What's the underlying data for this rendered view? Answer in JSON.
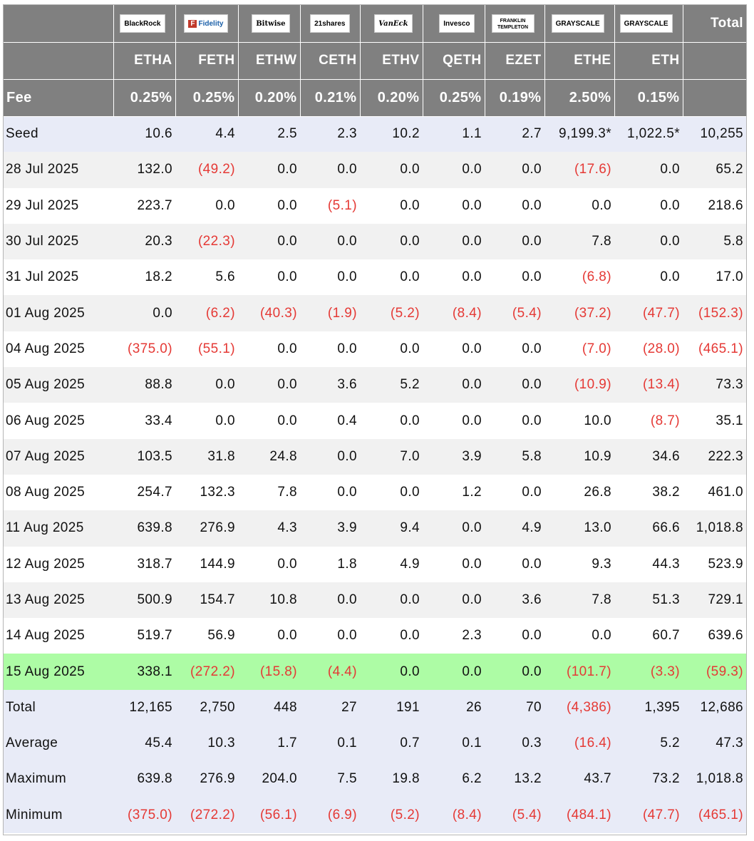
{
  "header": {
    "logos": [
      {
        "name": "BlackRock",
        "label": "BlackRock"
      },
      {
        "name": "Fidelity",
        "label": "Fidelity"
      },
      {
        "name": "Bitwise",
        "label": "Bitwise"
      },
      {
        "name": "21shares",
        "label": "21shares"
      },
      {
        "name": "VanEck",
        "label": "VanEck"
      },
      {
        "name": "Invesco",
        "label": "Invesco"
      },
      {
        "name": "Franklin Templeton",
        "label": "FRANKLIN TEMPLETON"
      },
      {
        "name": "Grayscale",
        "label": "GRAYSCALE"
      },
      {
        "name": "Grayscale",
        "label": "GRAYSCALE"
      }
    ],
    "total_label": "Total",
    "tickers": [
      "ETHA",
      "FETH",
      "ETHW",
      "CETH",
      "ETHV",
      "QETH",
      "EZET",
      "ETHE",
      "ETH"
    ],
    "fee_label": "Fee",
    "fees": [
      "0.25%",
      "0.25%",
      "0.20%",
      "0.21%",
      "0.20%",
      "0.25%",
      "0.19%",
      "2.50%",
      "0.15%"
    ]
  },
  "rows": [
    {
      "date": "Seed",
      "values": [
        "10.6",
        "4.4",
        "2.5",
        "2.3",
        "10.2",
        "1.1",
        "2.7",
        "9,199.3*",
        "1,022.5*",
        "10,255"
      ]
    },
    {
      "date": "28 Jul 2025",
      "values": [
        "132.0",
        "(49.2)",
        "0.0",
        "0.0",
        "0.0",
        "0.0",
        "0.0",
        "(17.6)",
        "0.0",
        "65.2"
      ]
    },
    {
      "date": "29 Jul 2025",
      "values": [
        "223.7",
        "0.0",
        "0.0",
        "(5.1)",
        "0.0",
        "0.0",
        "0.0",
        "0.0",
        "0.0",
        "218.6"
      ]
    },
    {
      "date": "30 Jul 2025",
      "values": [
        "20.3",
        "(22.3)",
        "0.0",
        "0.0",
        "0.0",
        "0.0",
        "0.0",
        "7.8",
        "0.0",
        "5.8"
      ]
    },
    {
      "date": "31 Jul 2025",
      "values": [
        "18.2",
        "5.6",
        "0.0",
        "0.0",
        "0.0",
        "0.0",
        "0.0",
        "(6.8)",
        "0.0",
        "17.0"
      ]
    },
    {
      "date": "01 Aug 2025",
      "values": [
        "0.0",
        "(6.2)",
        "(40.3)",
        "(1.9)",
        "(5.2)",
        "(8.4)",
        "(5.4)",
        "(37.2)",
        "(47.7)",
        "(152.3)"
      ]
    },
    {
      "date": "04 Aug 2025",
      "values": [
        "(375.0)",
        "(55.1)",
        "0.0",
        "0.0",
        "0.0",
        "0.0",
        "0.0",
        "(7.0)",
        "(28.0)",
        "(465.1)"
      ]
    },
    {
      "date": "05 Aug 2025",
      "values": [
        "88.8",
        "0.0",
        "0.0",
        "3.6",
        "5.2",
        "0.0",
        "0.0",
        "(10.9)",
        "(13.4)",
        "73.3"
      ]
    },
    {
      "date": "06 Aug 2025",
      "values": [
        "33.4",
        "0.0",
        "0.0",
        "0.4",
        "0.0",
        "0.0",
        "0.0",
        "10.0",
        "(8.7)",
        "35.1"
      ]
    },
    {
      "date": "07 Aug 2025",
      "values": [
        "103.5",
        "31.8",
        "24.8",
        "0.0",
        "7.0",
        "3.9",
        "5.8",
        "10.9",
        "34.6",
        "222.3"
      ]
    },
    {
      "date": "08 Aug 2025",
      "values": [
        "254.7",
        "132.3",
        "7.8",
        "0.0",
        "0.0",
        "1.2",
        "0.0",
        "26.8",
        "38.2",
        "461.0"
      ]
    },
    {
      "date": "11 Aug 2025",
      "values": [
        "639.8",
        "276.9",
        "4.3",
        "3.9",
        "9.4",
        "0.0",
        "4.9",
        "13.0",
        "66.6",
        "1,018.8"
      ]
    },
    {
      "date": "12 Aug 2025",
      "values": [
        "318.7",
        "144.9",
        "0.0",
        "1.8",
        "4.9",
        "0.0",
        "0.0",
        "9.3",
        "44.3",
        "523.9"
      ]
    },
    {
      "date": "13 Aug 2025",
      "values": [
        "500.9",
        "154.7",
        "10.8",
        "0.0",
        "0.0",
        "0.0",
        "3.6",
        "7.8",
        "51.3",
        "729.1"
      ]
    },
    {
      "date": "14 Aug 2025",
      "values": [
        "519.7",
        "56.9",
        "0.0",
        "0.0",
        "0.0",
        "2.3",
        "0.0",
        "0.0",
        "60.7",
        "639.6"
      ]
    },
    {
      "date": "15 Aug 2025",
      "values": [
        "338.1",
        "(272.2)",
        "(15.8)",
        "(4.4)",
        "0.0",
        "0.0",
        "0.0",
        "(101.7)",
        "(3.3)",
        "(59.3)"
      ]
    }
  ],
  "summary": [
    {
      "label": "Total",
      "values": [
        "12,165",
        "2,750",
        "448",
        "27",
        "191",
        "26",
        "70",
        "(4,386)",
        "1,395",
        "12,686"
      ]
    },
    {
      "label": "Average",
      "values": [
        "45.4",
        "10.3",
        "1.7",
        "0.1",
        "0.7",
        "0.1",
        "0.3",
        "(16.4)",
        "5.2",
        "47.3"
      ]
    },
    {
      "label": "Maximum",
      "values": [
        "639.8",
        "276.9",
        "204.0",
        "7.5",
        "19.8",
        "6.2",
        "13.2",
        "43.7",
        "73.2",
        "1,018.8"
      ]
    },
    {
      "label": "Minimum",
      "values": [
        "(375.0)",
        "(272.2)",
        "(56.1)",
        "(6.9)",
        "(5.2)",
        "(8.4)",
        "(5.4)",
        "(484.1)",
        "(47.7)",
        "(465.1)"
      ]
    }
  ],
  "colors": {
    "header_bg": "#808080",
    "negative": "#e53935",
    "seed_summary_bg": "#e8ebf7",
    "highlight_row_bg": "#adfca5",
    "stripe_bg": "#f1f1f1"
  }
}
